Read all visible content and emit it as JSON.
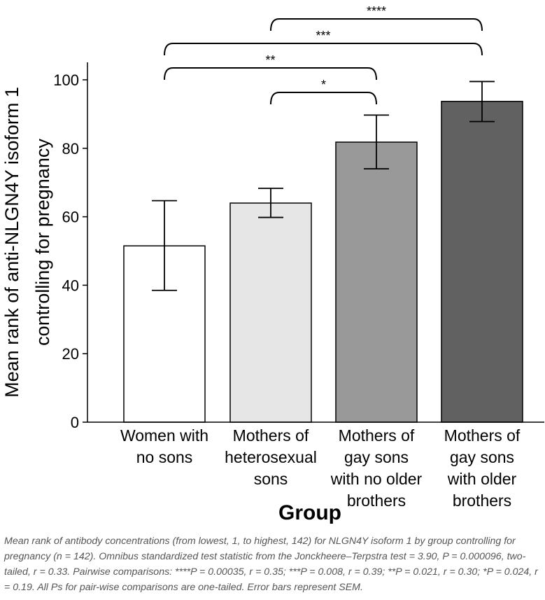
{
  "chart_data": {
    "type": "bar",
    "categories": [
      [
        "Women with",
        "no sons"
      ],
      [
        "Mothers of",
        "heterosexual",
        "sons"
      ],
      [
        "Mothers of",
        "gay sons",
        "with no older",
        "brothers"
      ],
      [
        "Mothers of",
        "gay sons",
        "with older",
        "brothers"
      ]
    ],
    "values": [
      51.5,
      64,
      81.8,
      93.7
    ],
    "error_low": [
      38.5,
      59.8,
      74,
      87.8
    ],
    "error_high": [
      64.7,
      68.3,
      89.7,
      99.5
    ],
    "bar_colors": [
      "#ffffff",
      "#e6e6e6",
      "#999999",
      "#616161"
    ],
    "ylim": [
      0,
      100
    ],
    "yticks": [
      0,
      20,
      40,
      60,
      80,
      100
    ],
    "ylabel_lines": [
      "Mean rank of anti-NLGN4Y isoform 1",
      "controlling for pregnancy"
    ],
    "xlabel": "Group",
    "significance": [
      {
        "from": 1,
        "to": 3,
        "label": "****"
      },
      {
        "from": 0,
        "to": 3,
        "label": "***"
      },
      {
        "from": 0,
        "to": 2,
        "label": "**"
      },
      {
        "from": 1,
        "to": 2,
        "label": "*"
      }
    ]
  },
  "caption": "Mean rank of antibody concentrations (from lowest, 1, to highest, 142) for NLGN4Y isoform 1 by group controlling for pregnancy (n = 142). Omnibus standardized test statistic from the Jonckheere–Terpstra test = 3.90, P = 0.000096, two-tailed, r = 0.33. Pairwise comparisons: ****P = 0.00035, r = 0.35; ***P = 0.008, r = 0.39; **P = 0.021, r = 0.30; *P = 0.024, r = 0.19. All Ps for pair-wise comparisons are one-tailed. Error bars represent SEM."
}
